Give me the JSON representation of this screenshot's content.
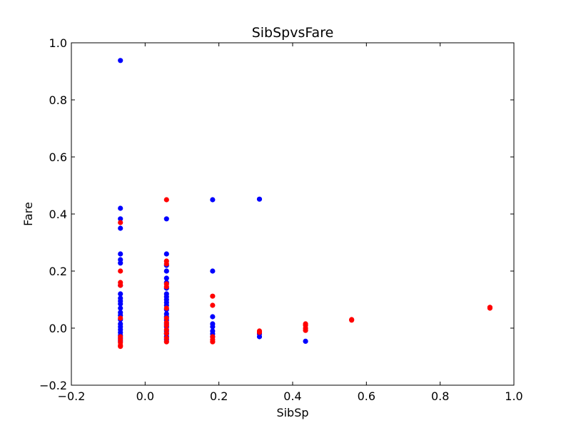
{
  "chart_data": {
    "type": "scatter",
    "title": "SibSpvsFare",
    "xlabel": "SibSp",
    "ylabel": "Fare",
    "xlim": [
      -0.2,
      1.0
    ],
    "ylim": [
      -0.2,
      1.0
    ],
    "xticks": [
      "−0.2",
      "0.0",
      "0.2",
      "0.4",
      "0.6",
      "0.8",
      "1.0"
    ],
    "yticks": [
      "−0.2",
      "0.0",
      "0.2",
      "0.4",
      "0.6",
      "0.8",
      "1.0"
    ],
    "grid": false,
    "colors": {
      "blue": "#0000ff",
      "red": "#ff0000"
    },
    "series": [
      {
        "color": "#0000ff",
        "points": [
          [
            -0.067,
            0.938
          ],
          [
            -0.067,
            0.42
          ],
          [
            -0.067,
            0.383
          ],
          [
            -0.067,
            0.35
          ],
          [
            -0.067,
            0.26
          ],
          [
            -0.067,
            0.24
          ],
          [
            -0.067,
            0.228
          ],
          [
            -0.067,
            0.15
          ],
          [
            -0.067,
            0.12
          ],
          [
            -0.067,
            0.105
          ],
          [
            -0.067,
            0.095
          ],
          [
            -0.067,
            0.085
          ],
          [
            -0.067,
            0.07
          ],
          [
            -0.067,
            0.055
          ],
          [
            -0.067,
            0.045
          ],
          [
            -0.067,
            0.03
          ],
          [
            -0.067,
            0.015
          ],
          [
            -0.067,
            0.005
          ],
          [
            -0.067,
            -0.005
          ],
          [
            -0.067,
            -0.015
          ],
          [
            -0.067,
            -0.025
          ],
          [
            -0.067,
            -0.035
          ],
          [
            -0.067,
            -0.045
          ],
          [
            0.058,
            0.383
          ],
          [
            0.058,
            0.26
          ],
          [
            0.058,
            0.22
          ],
          [
            0.058,
            0.2
          ],
          [
            0.058,
            0.175
          ],
          [
            0.058,
            0.16
          ],
          [
            0.058,
            0.14
          ],
          [
            0.058,
            0.12
          ],
          [
            0.058,
            0.11
          ],
          [
            0.058,
            0.1
          ],
          [
            0.058,
            0.09
          ],
          [
            0.058,
            0.08
          ],
          [
            0.058,
            0.065
          ],
          [
            0.058,
            0.05
          ],
          [
            0.058,
            0.04
          ],
          [
            0.058,
            0.028
          ],
          [
            0.058,
            0.015
          ],
          [
            0.058,
            0.005
          ],
          [
            0.058,
            -0.01
          ],
          [
            0.058,
            -0.02
          ],
          [
            0.058,
            -0.03
          ],
          [
            0.058,
            -0.04
          ],
          [
            0.183,
            0.45
          ],
          [
            0.183,
            0.2
          ],
          [
            0.183,
            0.04
          ],
          [
            0.183,
            0.015
          ],
          [
            0.183,
            0.005
          ],
          [
            0.183,
            -0.01
          ],
          [
            0.183,
            -0.02
          ],
          [
            0.183,
            -0.03
          ],
          [
            0.31,
            0.452
          ],
          [
            0.31,
            -0.02
          ],
          [
            0.31,
            -0.03
          ],
          [
            0.435,
            -0.046
          ]
        ]
      },
      {
        "color": "#ff0000",
        "points": [
          [
            -0.067,
            0.37
          ],
          [
            -0.067,
            0.2
          ],
          [
            -0.067,
            0.16
          ],
          [
            -0.067,
            0.15
          ],
          [
            -0.067,
            0.035
          ],
          [
            -0.067,
            -0.03
          ],
          [
            -0.067,
            -0.04
          ],
          [
            -0.067,
            -0.05
          ],
          [
            -0.067,
            -0.06
          ],
          [
            -0.067,
            -0.064
          ],
          [
            0.058,
            0.45
          ],
          [
            0.058,
            0.235
          ],
          [
            0.058,
            0.225
          ],
          [
            0.058,
            0.155
          ],
          [
            0.058,
            0.145
          ],
          [
            0.058,
            0.07
          ],
          [
            0.058,
            0.035
          ],
          [
            0.058,
            0.02
          ],
          [
            0.058,
            0.01
          ],
          [
            0.058,
            -0.005
          ],
          [
            0.058,
            -0.018
          ],
          [
            0.058,
            -0.035
          ],
          [
            0.058,
            -0.048
          ],
          [
            0.183,
            0.112
          ],
          [
            0.183,
            0.08
          ],
          [
            0.183,
            -0.03
          ],
          [
            0.183,
            -0.04
          ],
          [
            0.183,
            -0.048
          ],
          [
            0.31,
            -0.01
          ],
          [
            0.31,
            -0.015
          ],
          [
            0.435,
            0.015
          ],
          [
            0.435,
            0.01
          ],
          [
            0.435,
            0.0
          ],
          [
            0.435,
            -0.008
          ],
          [
            0.56,
            0.028
          ],
          [
            0.56,
            0.03
          ],
          [
            0.935,
            0.07
          ],
          [
            0.935,
            0.073
          ]
        ]
      }
    ]
  }
}
